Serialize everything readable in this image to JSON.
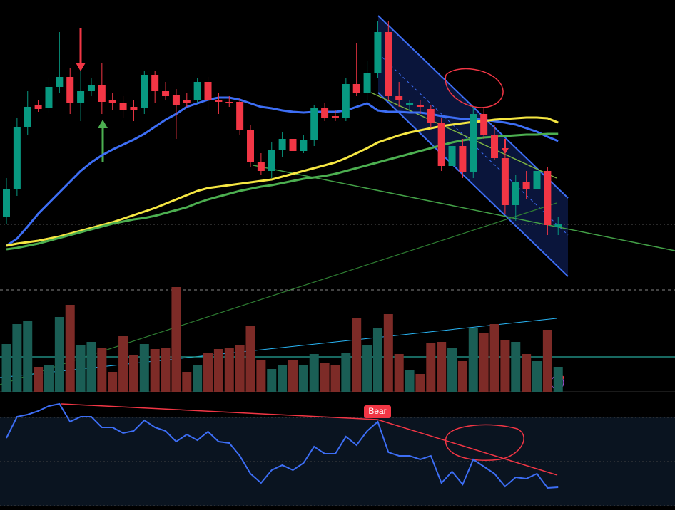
{
  "chart_data": [
    {
      "type": "candlestick",
      "ylim": [
        0,
        400
      ],
      "up_color": "#089981",
      "down_color": "#f23645",
      "open": [
        95,
        135,
        222,
        252,
        248,
        278,
        292,
        255,
        272,
        280,
        260,
        255,
        250,
        248,
        295,
        272,
        267,
        260,
        260,
        285,
        260,
        257,
        257,
        217,
        172,
        160,
        190,
        205,
        188,
        203,
        248,
        237,
        235,
        282,
        270,
        298,
        355,
        265,
        252,
        252,
        247,
        227,
        167,
        195,
        158,
        240,
        210,
        178,
        112,
        145,
        135,
        160,
        82
      ],
      "high": [
        150,
        235,
        272,
        260,
        290,
        355,
        305,
        300,
        290,
        312,
        270,
        265,
        260,
        300,
        300,
        285,
        275,
        270,
        290,
        292,
        270,
        265,
        262,
        225,
        185,
        200,
        215,
        215,
        210,
        252,
        255,
        245,
        290,
        340,
        315,
        370,
        370,
        285,
        260,
        260,
        252,
        235,
        205,
        205,
        250,
        250,
        225,
        205,
        155,
        160,
        170,
        165,
        95
      ],
      "low": [
        85,
        125,
        210,
        243,
        242,
        270,
        240,
        230,
        265,
        240,
        245,
        235,
        230,
        240,
        255,
        260,
        205,
        250,
        255,
        245,
        240,
        250,
        210,
        165,
        155,
        150,
        180,
        178,
        185,
        195,
        230,
        230,
        230,
        265,
        260,
        290,
        260,
        250,
        245,
        240,
        220,
        160,
        160,
        150,
        150,
        205,
        175,
        100,
        90,
        120,
        130,
        70,
        70
      ],
      "close": [
        135,
        222,
        250,
        247,
        278,
        292,
        255,
        272,
        280,
        257,
        255,
        245,
        245,
        295,
        272,
        265,
        252,
        255,
        285,
        260,
        257,
        255,
        217,
        172,
        160,
        190,
        205,
        188,
        203,
        248,
        235,
        235,
        282,
        270,
        298,
        355,
        265,
        260,
        255,
        250,
        227,
        167,
        195,
        158,
        240,
        210,
        178,
        112,
        145,
        135,
        160,
        84,
        85
      ],
      "series": [
        {
          "color": "#3d6ef5",
          "values": [
            55,
            65,
            82,
            100,
            115,
            130,
            145,
            160,
            172,
            182,
            190,
            197,
            204,
            212,
            222,
            232,
            240,
            250,
            255,
            260,
            263,
            263,
            260,
            255,
            250,
            248,
            245,
            243,
            242,
            243,
            243,
            243,
            245,
            250,
            255,
            245,
            243,
            243,
            242,
            242,
            240,
            237,
            235,
            233,
            233,
            232,
            230,
            228,
            225,
            220,
            215,
            208,
            202
          ]
        },
        {
          "color": "#f5e642",
          "values": [
            55,
            58,
            60,
            62,
            65,
            68,
            72,
            76,
            80,
            84,
            88,
            93,
            98,
            103,
            108,
            114,
            120,
            126,
            132,
            136,
            138,
            140,
            142,
            144,
            146,
            148,
            152,
            156,
            160,
            164,
            168,
            172,
            178,
            185,
            192,
            200,
            205,
            210,
            214,
            217,
            220,
            223,
            225,
            227,
            229,
            230,
            232,
            233,
            234,
            235,
            235,
            234,
            228
          ]
        },
        {
          "color": "#4caf50",
          "values": [
            50,
            52,
            55,
            58,
            62,
            66,
            70,
            74,
            78,
            82,
            86,
            89,
            92,
            94,
            97,
            101,
            105,
            109,
            115,
            120,
            124,
            128,
            132,
            135,
            138,
            140,
            143,
            146,
            149,
            151,
            153,
            156,
            160,
            164,
            168,
            172,
            176,
            180,
            184,
            188,
            192,
            196,
            200,
            203,
            205,
            207,
            208,
            209,
            210,
            211,
            211,
            212,
            212
          ]
        }
      ]
    },
    {
      "type": "bar",
      "ylim": [
        0,
        150
      ],
      "up_color": "#1a5e55",
      "down_color": "#7d2b27",
      "values": [
        67,
        95,
        100,
        35,
        38,
        105,
        122,
        65,
        70,
        62,
        28,
        78,
        52,
        67,
        60,
        62,
        147,
        28,
        38,
        55,
        60,
        62,
        65,
        93,
        45,
        32,
        37,
        45,
        38,
        53,
        40,
        38,
        55,
        103,
        65,
        90,
        109,
        53,
        30,
        25,
        68,
        70,
        62,
        43,
        90,
        83,
        95,
        73,
        70,
        53,
        43,
        87,
        35
      ]
    },
    {
      "type": "line",
      "ylim": [
        0,
        156
      ],
      "color": "#3d6ef5",
      "annotation": "Bear",
      "values": [
        101,
        131,
        134,
        139,
        146,
        149,
        124,
        131,
        131,
        116,
        116,
        108,
        111,
        126,
        116,
        111,
        96,
        106,
        98,
        110,
        96,
        94,
        76,
        51,
        38,
        56,
        63,
        56,
        66,
        89,
        79,
        79,
        103,
        91,
        111,
        124,
        81,
        76,
        76,
        71,
        76,
        38,
        54,
        36,
        71,
        61,
        51,
        33,
        46,
        44,
        51,
        31,
        32
      ]
    }
  ]
}
